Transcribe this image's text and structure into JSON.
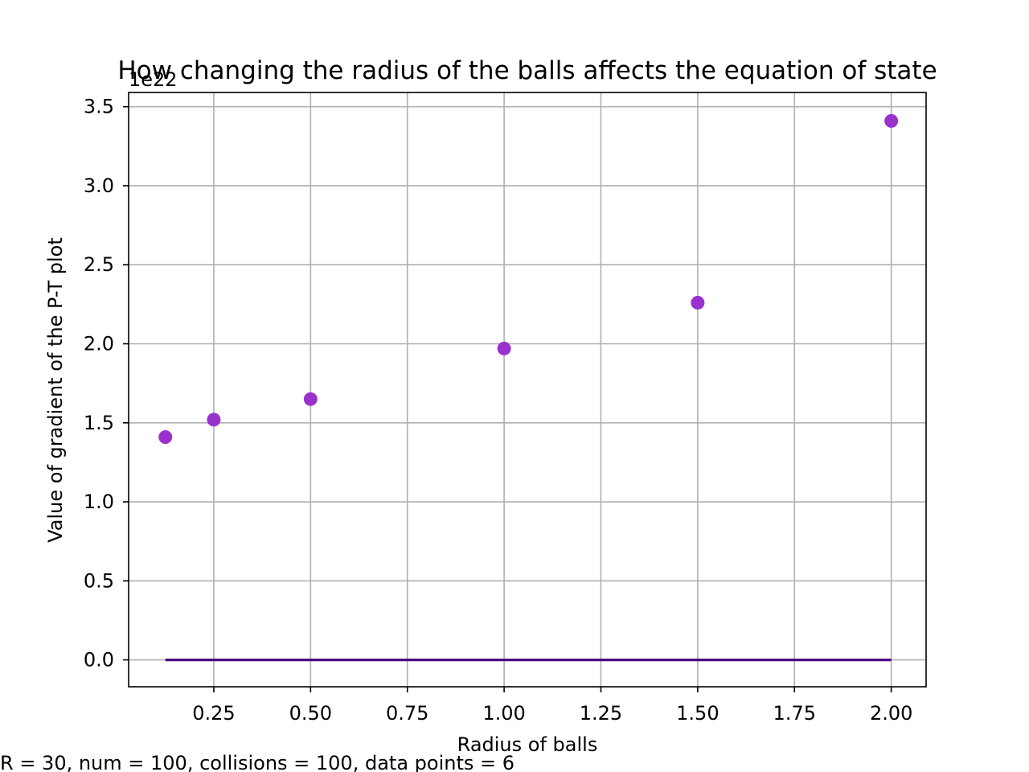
{
  "chart_data": {
    "type": "scatter",
    "title": "How changing the radius of the balls affects the equation of state",
    "xlabel": "Radius of balls",
    "ylabel": "Value of gradient of the P-T plot",
    "y_multiplier_label": "1e22",
    "footnote": "R = 30, num = 100, collisions = 100, data points = 6",
    "xlim": [
      0.03,
      2.09
    ],
    "ylim": [
      -0.17,
      3.59
    ],
    "xticks": [
      0.25,
      0.5,
      0.75,
      1.0,
      1.25,
      1.5,
      1.75,
      2.0
    ],
    "xtick_labels": [
      "0.25",
      "0.50",
      "0.75",
      "1.00",
      "1.25",
      "1.50",
      "1.75",
      "2.00"
    ],
    "yticks": [
      0.0,
      0.5,
      1.0,
      1.5,
      2.0,
      2.5,
      3.0,
      3.5
    ],
    "ytick_labels": [
      "0.0",
      "0.5",
      "1.0",
      "1.5",
      "2.0",
      "2.5",
      "3.0",
      "3.5"
    ],
    "grid": true,
    "series": [
      {
        "kind": "scatter",
        "color": "#9932cc",
        "x": [
          0.125,
          0.25,
          0.5,
          1.0,
          1.5,
          2.0
        ],
        "y": [
          1.41,
          1.52,
          1.65,
          1.97,
          2.26,
          3.41
        ]
      },
      {
        "kind": "line",
        "color": "#4b0082",
        "x": [
          0.125,
          2.0
        ],
        "y": [
          0.0,
          0.0
        ]
      }
    ]
  }
}
